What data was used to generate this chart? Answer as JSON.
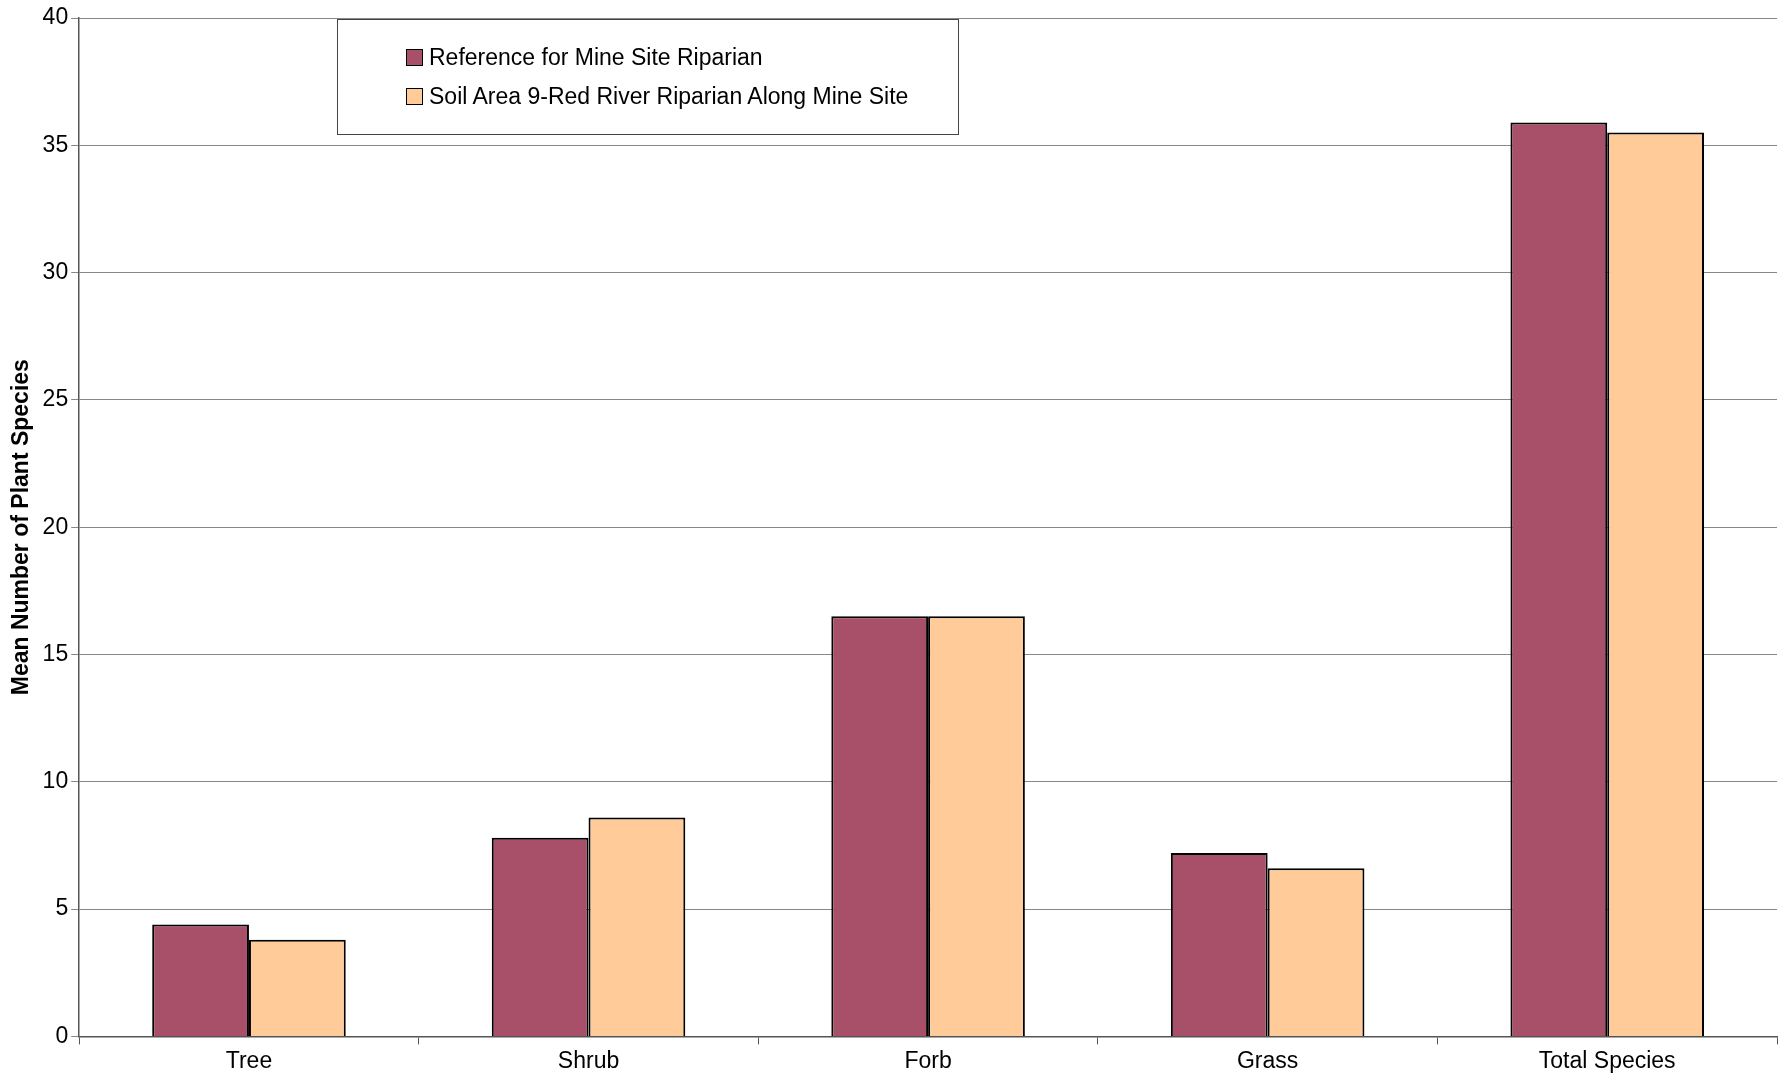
{
  "chart_data": {
    "type": "bar",
    "ylabel": "Mean Number of Plant Species",
    "categories": [
      "Tree",
      "Shrub",
      "Forb",
      "Grass",
      "Total Species"
    ],
    "series": [
      {
        "name": "Reference for Mine Site Riparian",
        "color": "#a8506a",
        "values": [
          4.4,
          7.8,
          16.5,
          7.2,
          35.9
        ]
      },
      {
        "name": "Soil Area 9-Red River Riparian Along Mine Site",
        "color": "#ffcc99",
        "values": [
          3.8,
          8.6,
          16.5,
          6.6,
          35.5
        ]
      }
    ],
    "ylim": [
      0,
      40
    ],
    "yticks": [
      0,
      5,
      10,
      15,
      20,
      25,
      30,
      35,
      40
    ],
    "grid": "y",
    "legend": "top left"
  }
}
